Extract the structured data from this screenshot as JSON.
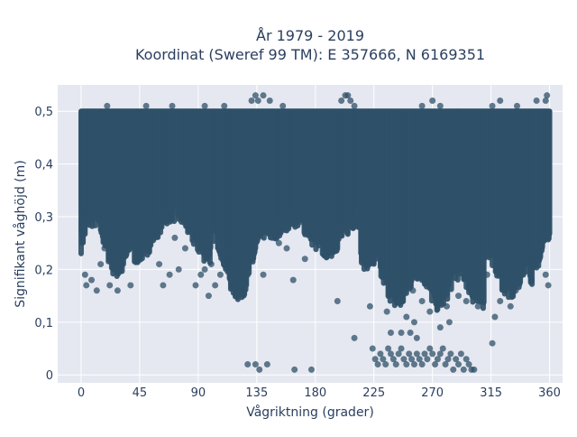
{
  "chart_data": {
    "type": "scatter",
    "title": "År 1979 - 2019",
    "subtitle": "Koordinat (Sweref 99 TM): E 357666, N 6169351",
    "xlabel": "Vågriktning (grader)",
    "ylabel": "Signifikant våghöjd (m)",
    "xlim": [
      -18,
      370
    ],
    "ylim": [
      -0.015,
      0.55
    ],
    "xticks": [
      0,
      45,
      90,
      135,
      180,
      225,
      270,
      315,
      360
    ],
    "yticks": [
      0,
      0.1,
      0.2,
      0.3,
      0.4,
      0.5
    ],
    "ytick_labels": [
      "0",
      "0,1",
      "0,2",
      "0,3",
      "0,4",
      "0,5"
    ],
    "grid": true,
    "marker_color": "#2f5068",
    "background": "#e5e8f0",
    "series": [
      {
        "points": [
          [
            1,
            0.31
          ],
          [
            2,
            0.27
          ],
          [
            3,
            0.19
          ],
          [
            4,
            0.17
          ],
          [
            8,
            0.18
          ],
          [
            12,
            0.16
          ],
          [
            15,
            0.21
          ],
          [
            18,
            0.24
          ],
          [
            22,
            0.17
          ],
          [
            25,
            0.22
          ],
          [
            28,
            0.16
          ],
          [
            30,
            0.2
          ],
          [
            31,
            0.23
          ],
          [
            35,
            0.25
          ],
          [
            38,
            0.17
          ],
          [
            42,
            0.24
          ],
          [
            48,
            0.23
          ],
          [
            52,
            0.27
          ],
          [
            55,
            0.28
          ],
          [
            60,
            0.21
          ],
          [
            63,
            0.17
          ],
          [
            68,
            0.19
          ],
          [
            72,
            0.26
          ],
          [
            75,
            0.2
          ],
          [
            80,
            0.24
          ],
          [
            85,
            0.27
          ],
          [
            88,
            0.17
          ],
          [
            92,
            0.19
          ],
          [
            95,
            0.2
          ],
          [
            98,
            0.15
          ],
          [
            100,
            0.21
          ],
          [
            103,
            0.17
          ],
          [
            107,
            0.19
          ],
          [
            110,
            0.22
          ],
          [
            113,
            0.23
          ],
          [
            116,
            0.18
          ],
          [
            120,
            0.2
          ],
          [
            124,
            0.17
          ],
          [
            128,
            0.19
          ],
          [
            131,
            0.24
          ],
          [
            136,
            0.26
          ],
          [
            140,
            0.19
          ],
          [
            147,
            0.26
          ],
          [
            152,
            0.25
          ],
          [
            158,
            0.24
          ],
          [
            163,
            0.18
          ],
          [
            168,
            0.29
          ],
          [
            172,
            0.22
          ],
          [
            178,
            0.26
          ],
          [
            186,
            0.27
          ],
          [
            193,
            0.25
          ],
          [
            197,
            0.14
          ],
          [
            203,
            0.28
          ],
          [
            210,
            0.07
          ],
          [
            216,
            0.25
          ],
          [
            222,
            0.13
          ],
          [
            224,
            0.05
          ],
          [
            226,
            0.03
          ],
          [
            228,
            0.02
          ],
          [
            230,
            0.04
          ],
          [
            232,
            0.03
          ],
          [
            234,
            0.02
          ],
          [
            236,
            0.05
          ],
          [
            238,
            0.04
          ],
          [
            240,
            0.03
          ],
          [
            242,
            0.02
          ],
          [
            244,
            0.04
          ],
          [
            246,
            0.05
          ],
          [
            248,
            0.03
          ],
          [
            250,
            0.02
          ],
          [
            252,
            0.04
          ],
          [
            254,
            0.03
          ],
          [
            256,
            0.02
          ],
          [
            258,
            0.04
          ],
          [
            260,
            0.03
          ],
          [
            262,
            0.02
          ],
          [
            264,
            0.04
          ],
          [
            266,
            0.03
          ],
          [
            268,
            0.05
          ],
          [
            270,
            0.04
          ],
          [
            272,
            0.02
          ],
          [
            274,
            0.03
          ],
          [
            276,
            0.04
          ],
          [
            278,
            0.05
          ],
          [
            280,
            0.02
          ],
          [
            282,
            0.03
          ],
          [
            284,
            0.04
          ],
          [
            286,
            0.01
          ],
          [
            288,
            0.03
          ],
          [
            290,
            0.02
          ],
          [
            292,
            0.04
          ],
          [
            294,
            0.01
          ],
          [
            296,
            0.03
          ],
          [
            298,
            0.02
          ],
          [
            300,
            0.01
          ],
          [
            302,
            0.01
          ],
          [
            235,
            0.12
          ],
          [
            238,
            0.08
          ],
          [
            246,
            0.08
          ],
          [
            250,
            0.11
          ],
          [
            253,
            0.08
          ],
          [
            256,
            0.1
          ],
          [
            258,
            0.07
          ],
          [
            276,
            0.09
          ],
          [
            283,
            0.1
          ],
          [
            255,
            0.16
          ],
          [
            262,
            0.14
          ],
          [
            268,
            0.12
          ],
          [
            274,
            0.15
          ],
          [
            281,
            0.13
          ],
          [
            290,
            0.15
          ],
          [
            296,
            0.14
          ],
          [
            305,
            0.13
          ],
          [
            309,
            0.15
          ],
          [
            312,
            0.19
          ],
          [
            316,
            0.06
          ],
          [
            318,
            0.11
          ],
          [
            322,
            0.14
          ],
          [
            326,
            0.17
          ],
          [
            330,
            0.13
          ],
          [
            334,
            0.16
          ],
          [
            338,
            0.2
          ],
          [
            342,
            0.21
          ],
          [
            346,
            0.18
          ],
          [
            350,
            0.22
          ],
          [
            354,
            0.24
          ],
          [
            357,
            0.19
          ],
          [
            358,
            0.53
          ],
          [
            359,
            0.17
          ],
          [
            128,
            0.02
          ],
          [
            134,
            0.02
          ],
          [
            137,
            0.01
          ],
          [
            143,
            0.02
          ],
          [
            164,
            0.01
          ],
          [
            177,
            0.01
          ],
          [
            131,
            0.52
          ],
          [
            134,
            0.53
          ],
          [
            136,
            0.52
          ],
          [
            140,
            0.53
          ],
          [
            145,
            0.52
          ],
          [
            200,
            0.52
          ],
          [
            203,
            0.53
          ],
          [
            205,
            0.53
          ],
          [
            207,
            0.52
          ],
          [
            210,
            0.51
          ],
          [
            262,
            0.51
          ],
          [
            270,
            0.52
          ],
          [
            276,
            0.51
          ],
          [
            316,
            0.51
          ],
          [
            322,
            0.52
          ],
          [
            335,
            0.51
          ],
          [
            350,
            0.52
          ],
          [
            357,
            0.52
          ],
          [
            20,
            0.51
          ],
          [
            50,
            0.51
          ],
          [
            70,
            0.51
          ],
          [
            95,
            0.51
          ],
          [
            110,
            0.51
          ],
          [
            155,
            0.51
          ]
        ]
      }
    ]
  }
}
